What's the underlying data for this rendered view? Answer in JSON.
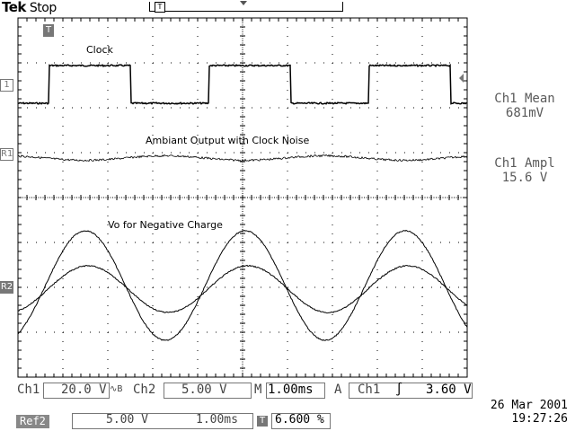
{
  "header": {
    "brand": "Tek",
    "state": "Stop",
    "trigger_pos_marker": "T"
  },
  "display": {
    "ground_marker_ch1": "1",
    "ref1_marker": "R1",
    "ref2_marker": "R2",
    "trigger_marker": "T",
    "traces": {
      "clock_label": "Clock",
      "ambiant_label": "Ambiant Output with Clock Noise",
      "vo_label": "Vo for Negative Charge"
    }
  },
  "measurements": {
    "m1_label": "Ch1 Mean",
    "m1_value": "681mV",
    "m2_label": "Ch1 Ampl",
    "m2_value": "15.6 V"
  },
  "status": {
    "ch1": "Ch1",
    "ch1_scale": "20.0 V",
    "bw_symbol": "∿B",
    "ch2": "Ch2",
    "ch2_scale": "5.00 V",
    "timebase_label": "M",
    "timebase": "1.00ms",
    "trig_label": "A",
    "trig_src": "Ch1",
    "trig_slope": "∫",
    "trig_level": "3.60 V",
    "date": "26 Mar 2001",
    "time": "19:27:26",
    "ref2": "Ref2",
    "ref2_scale": "5.00 V",
    "ref2_time": "1.00ms",
    "cursor_marker": "T",
    "cursor_value": "6.600 %"
  },
  "colors": {
    "trace": "#000000",
    "grid": "#000000",
    "dim": "#5a5a5a"
  }
}
